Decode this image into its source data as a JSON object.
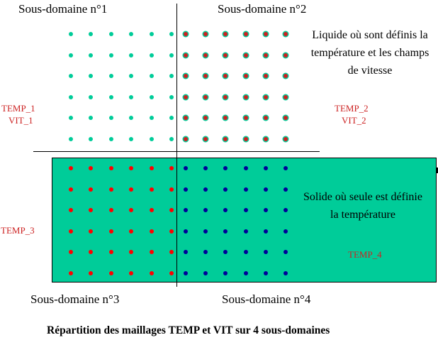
{
  "subdomains": {
    "sd1": "Sous-domaine n°1",
    "sd2": "Sous-domaine n°2",
    "sd3": "Sous-domaine n°3",
    "sd4": "Sous-domaine n°4"
  },
  "liquid_description": "Liquide où sont définis la température et les champs de vitesse",
  "solid_description": "Solide où seule est définie la température",
  "mesh_labels": {
    "sd1_temp": "TEMP_1",
    "sd1_vit": "VIT_1",
    "sd2_temp": "TEMP_2",
    "sd2_vit": "VIT_2",
    "sd3_temp": "TEMP_3",
    "sd4_temp": "TEMP_4"
  },
  "caption": "Répartition des maillages TEMP et VIT sur 4 sous-domaines",
  "grid": {
    "rows_per_subdomain": 6,
    "cols_per_subdomain": 6
  },
  "colors": {
    "solid_fill": "#00cc99",
    "liquid_dot": "#00cc99",
    "sd2_dot_outer": "#00cc99",
    "sd2_dot_inner": "#cc2222",
    "sd3_dot": "#ff0000",
    "sd4_dot": "#000099",
    "mesh_label": "#cc2222"
  }
}
